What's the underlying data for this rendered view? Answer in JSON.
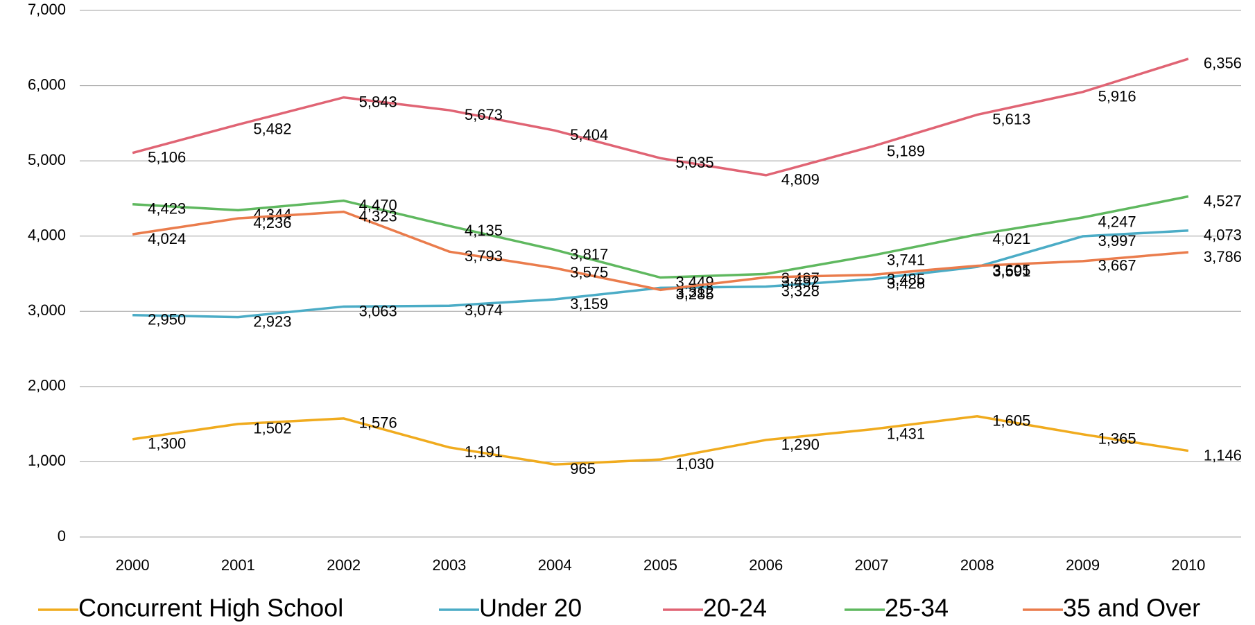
{
  "chart_data": {
    "type": "line",
    "categories": [
      "2000",
      "2001",
      "2002",
      "2003",
      "2004",
      "2005",
      "2006",
      "2007",
      "2008",
      "2009",
      "2010"
    ],
    "ylim": [
      0,
      7000
    ],
    "yticks": [
      0,
      {
        "value": 1000,
        "label": "1,000"
      },
      {
        "value": 2000,
        "label": "2,000"
      },
      {
        "value": 3000,
        "label": "3,000"
      },
      {
        "value": 4000,
        "label": "4,000"
      },
      {
        "value": 5000,
        "label": "5,000"
      },
      {
        "value": 6000,
        "label": "6,000"
      },
      {
        "value": 7000,
        "label": "7,000"
      }
    ],
    "grid": true,
    "legend": "bottom",
    "series": [
      {
        "name": "Concurrent High School",
        "color": "#f0ab1e",
        "values": [
          1300,
          1502,
          1576,
          1191,
          965,
          1030,
          1290,
          1431,
          1605,
          1365,
          1146
        ],
        "value_labels": [
          "1,300",
          "1,502",
          "1,576",
          "1,191",
          "965",
          "1,030",
          "1,290",
          "1,431",
          "1,605",
          "1,365",
          "1,146"
        ]
      },
      {
        "name": "Under 20",
        "color": "#4bacc6",
        "values": [
          2950,
          2923,
          3063,
          3074,
          3159,
          3312,
          3328,
          3428,
          3591,
          3997,
          4073
        ],
        "value_labels": [
          "2,950",
          "2,923",
          "3,063",
          "3,074",
          "3,159",
          "3,312",
          "3,328",
          "3,428",
          "3,591",
          "3,997",
          "4,073"
        ]
      },
      {
        "name": "20-24",
        "color": "#e06474",
        "values": [
          5106,
          5482,
          5843,
          5673,
          5404,
          5035,
          4809,
          5189,
          5613,
          5916,
          6356
        ],
        "value_labels": [
          "5,106",
          "5,482",
          "5,843",
          "5,673",
          "5,404",
          "5,035",
          "4,809",
          "5,189",
          "5,613",
          "5,916",
          "6,356"
        ]
      },
      {
        "name": "25-34",
        "color": "#5fb85f",
        "values": [
          4423,
          4344,
          4470,
          4135,
          3817,
          3449,
          3497,
          3741,
          4021,
          4247,
          4527
        ],
        "value_labels": [
          "4,423",
          "4,344",
          "4,470",
          "4,135",
          "3,817",
          "3,449",
          "3,497",
          "3,741",
          "4,021",
          "4,247",
          "4,527"
        ]
      },
      {
        "name": "35 and Over",
        "color": "#ea7c4c",
        "values": [
          4024,
          4236,
          4323,
          3793,
          3575,
          3285,
          3452,
          3485,
          3605,
          3667,
          3786
        ],
        "value_labels": [
          "4,024",
          "4,236",
          "4,323",
          "3,793",
          "3,575",
          "3,285",
          "3,452",
          "3,485",
          "3,605",
          "3,667",
          "3,786"
        ]
      }
    ]
  }
}
